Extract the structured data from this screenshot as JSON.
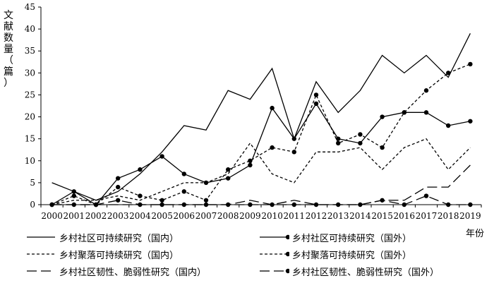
{
  "chart_data": {
    "type": "line",
    "ylabel": "文献数量（篇）",
    "xlabel": "年份",
    "ylim": [
      0,
      45
    ],
    "yticks": [
      0,
      5,
      10,
      15,
      20,
      25,
      30,
      35,
      40,
      45
    ],
    "categories": [
      "2000",
      "2001",
      "2002",
      "2003",
      "2004",
      "2005",
      "2006",
      "2007",
      "2008",
      "2009",
      "2010",
      "2011",
      "2012",
      "2013",
      "2014",
      "2015",
      "2016",
      "2017",
      "2018",
      "2019"
    ],
    "series": [
      {
        "name": "乡村社区可持续研究（国内）",
        "style": "solid",
        "marker": false,
        "values": [
          5,
          3,
          1,
          3,
          7,
          12,
          18,
          17,
          26,
          24,
          31,
          15,
          28,
          21,
          26,
          34,
          30,
          34,
          29,
          39
        ]
      },
      {
        "name": "乡村社区可持续研究（国外）",
        "style": "solid",
        "marker": true,
        "values": [
          0,
          3,
          0,
          6,
          8,
          11,
          7,
          5,
          6,
          9,
          22,
          15,
          23,
          15,
          14,
          20,
          21,
          21,
          18,
          19
        ]
      },
      {
        "name": "乡村聚落可持续研究（国内）",
        "style": "shortdash",
        "marker": false,
        "values": [
          0,
          1,
          1,
          2,
          1,
          3,
          5,
          5,
          7,
          14,
          7,
          5,
          12,
          12,
          13,
          8,
          13,
          15,
          8,
          13
        ]
      },
      {
        "name": "乡村聚落可持续研究（国外）",
        "style": "shortdash",
        "marker": true,
        "values": [
          0,
          2,
          0,
          4,
          2,
          1,
          3,
          1,
          8,
          10,
          13,
          12,
          25,
          14,
          16,
          13,
          21,
          26,
          30,
          32
        ]
      },
      {
        "name": "乡村社区韧性、脆弱性研究（国内）",
        "style": "longdash",
        "marker": false,
        "values": [
          0,
          0,
          0,
          0,
          0,
          0,
          0,
          0,
          0,
          1,
          0,
          1,
          0,
          0,
          0,
          1,
          1,
          4,
          4,
          9
        ]
      },
      {
        "name": "乡村社区韧性、脆弱性研究（国外）",
        "style": "longdash",
        "marker": true,
        "values": [
          0,
          0,
          0,
          1,
          0,
          0,
          0,
          0,
          0,
          0,
          0,
          0,
          0,
          0,
          0,
          1,
          0,
          2,
          0,
          0
        ]
      }
    ]
  }
}
